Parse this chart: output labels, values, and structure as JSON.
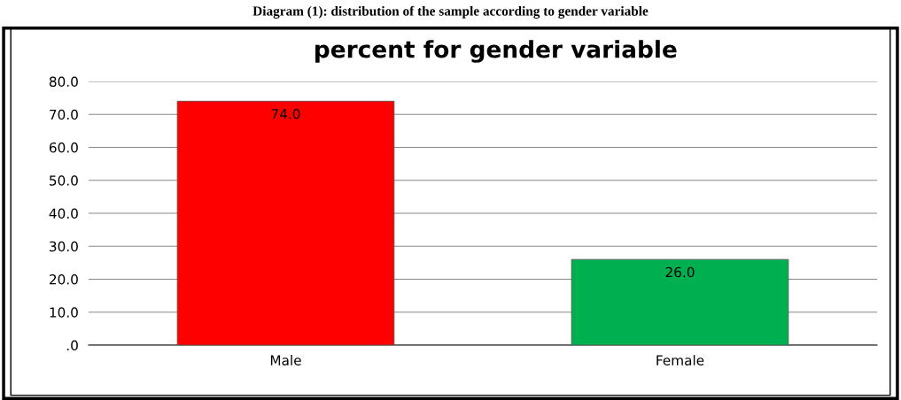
{
  "chart_data": {
    "type": "bar",
    "title": "percent for gender variable",
    "annotations": [
      "Diagram (1): distribution of the sample according to gender variable"
    ],
    "categories": [
      "Male",
      "Female"
    ],
    "values": [
      74,
      26
    ],
    "colors": [
      "#ff0000",
      "#00b050"
    ],
    "value_labels": [
      "74.0",
      "26.0"
    ],
    "ylim": [
      0,
      80
    ],
    "yticks": [
      {
        "value": 0,
        "label": ".0"
      },
      {
        "value": 10,
        "label": "10.0"
      },
      {
        "value": 20,
        "label": "20.0"
      },
      {
        "value": 30,
        "label": "30.0"
      },
      {
        "value": 40,
        "label": "40.0"
      },
      {
        "value": 50,
        "label": "50.0"
      },
      {
        "value": 60,
        "label": "60.0"
      },
      {
        "value": 70,
        "label": "70.0"
      },
      {
        "value": 80,
        "label": "80.0"
      }
    ],
    "grid": "y"
  }
}
